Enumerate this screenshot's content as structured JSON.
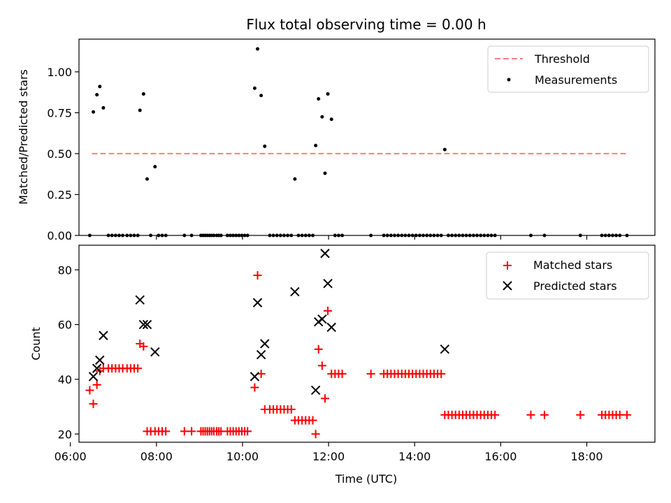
{
  "chart_data": [
    {
      "type": "scatter",
      "title": "Flux total observing time = 0.00 h",
      "ylabel": "Matched/Predicted stars",
      "xlabel": "",
      "xlim": [
        "06:12",
        "19:35"
      ],
      "ylim": [
        0,
        1.2
      ],
      "yticks": [
        0.0,
        0.25,
        0.5,
        0.75,
        1.0
      ],
      "ytick_labels": [
        "0.00",
        "0.25",
        "0.50",
        "0.75",
        "1.00"
      ],
      "legend_position": "top-right",
      "grid": false,
      "series": [
        {
          "name": "Threshold",
          "kind": "line",
          "style": "dashed",
          "color": "#ff7f7f",
          "x": [
            "06:30",
            "18:55"
          ],
          "y": [
            0.5,
            0.5
          ]
        },
        {
          "name": "Measurements",
          "kind": "scatter",
          "marker": "dot",
          "color": "#000000",
          "points": [
            [
              "06:27",
              0
            ],
            [
              "06:32",
              0.755
            ],
            [
              "06:37",
              0.86
            ],
            [
              "06:41",
              0.91
            ],
            [
              "06:46",
              0.78
            ],
            [
              "06:53",
              0
            ],
            [
              "06:58",
              0
            ],
            [
              "07:03",
              0
            ],
            [
              "07:08",
              0
            ],
            [
              "07:13",
              0
            ],
            [
              "07:19",
              0
            ],
            [
              "07:24",
              0
            ],
            [
              "07:29",
              0
            ],
            [
              "07:34",
              0
            ],
            [
              "07:37",
              0.765
            ],
            [
              "07:42",
              0.865
            ],
            [
              "07:47",
              0.345
            ],
            [
              "07:52",
              0
            ],
            [
              "07:58",
              0.42
            ],
            [
              "08:03",
              0
            ],
            [
              "08:08",
              0
            ],
            [
              "08:13",
              0
            ],
            [
              "08:39",
              0
            ],
            [
              "08:49",
              0
            ],
            [
              "09:02",
              0
            ],
            [
              "09:05",
              0
            ],
            [
              "09:08",
              0
            ],
            [
              "09:11",
              0
            ],
            [
              "09:14",
              0
            ],
            [
              "09:17",
              0
            ],
            [
              "09:20",
              0
            ],
            [
              "09:24",
              0
            ],
            [
              "09:27",
              0
            ],
            [
              "09:30",
              0
            ],
            [
              "09:39",
              0
            ],
            [
              "09:43",
              0
            ],
            [
              "09:47",
              0
            ],
            [
              "09:51",
              0
            ],
            [
              "09:55",
              0
            ],
            [
              "09:59",
              0
            ],
            [
              "10:03",
              0
            ],
            [
              "10:07",
              0
            ],
            [
              "10:17",
              0.9
            ],
            [
              "10:21",
              1.14
            ],
            [
              "10:26",
              0.855
            ],
            [
              "10:31",
              0.545
            ],
            [
              "10:38",
              0
            ],
            [
              "10:43",
              0
            ],
            [
              "10:48",
              0
            ],
            [
              "10:53",
              0
            ],
            [
              "10:58",
              0
            ],
            [
              "11:03",
              0
            ],
            [
              "11:08",
              0
            ],
            [
              "11:13",
              0.345
            ],
            [
              "11:18",
              0
            ],
            [
              "11:23",
              0
            ],
            [
              "11:28",
              0
            ],
            [
              "11:33",
              0
            ],
            [
              "11:38",
              0
            ],
            [
              "11:42",
              0.55
            ],
            [
              "11:46",
              0.835
            ],
            [
              "11:51",
              0.725
            ],
            [
              "11:55",
              0.38
            ],
            [
              "11:59",
              0.865
            ],
            [
              "12:04",
              0.71
            ],
            [
              "12:09",
              0
            ],
            [
              "12:14",
              0
            ],
            [
              "12:19",
              0
            ],
            [
              "12:59",
              0
            ],
            [
              "13:17",
              0
            ],
            [
              "13:22",
              0
            ],
            [
              "13:27",
              0
            ],
            [
              "13:32",
              0
            ],
            [
              "13:37",
              0
            ],
            [
              "13:42",
              0
            ],
            [
              "13:47",
              0
            ],
            [
              "13:52",
              0
            ],
            [
              "13:57",
              0
            ],
            [
              "14:02",
              0
            ],
            [
              "14:07",
              0
            ],
            [
              "14:12",
              0
            ],
            [
              "14:17",
              0
            ],
            [
              "14:22",
              0
            ],
            [
              "14:27",
              0
            ],
            [
              "14:32",
              0
            ],
            [
              "14:37",
              0
            ],
            [
              "14:42",
              0.525
            ],
            [
              "14:47",
              0
            ],
            [
              "14:52",
              0
            ],
            [
              "14:57",
              0
            ],
            [
              "15:02",
              0
            ],
            [
              "15:07",
              0
            ],
            [
              "15:12",
              0
            ],
            [
              "15:17",
              0
            ],
            [
              "15:22",
              0
            ],
            [
              "15:27",
              0
            ],
            [
              "15:32",
              0
            ],
            [
              "15:37",
              0
            ],
            [
              "15:42",
              0
            ],
            [
              "15:47",
              0
            ],
            [
              "15:52",
              0
            ],
            [
              "16:42",
              0
            ],
            [
              "17:01",
              0
            ],
            [
              "17:51",
              0
            ],
            [
              "18:21",
              0
            ],
            [
              "18:26",
              0
            ],
            [
              "18:31",
              0
            ],
            [
              "18:36",
              0
            ],
            [
              "18:41",
              0
            ],
            [
              "18:46",
              0
            ],
            [
              "18:56",
              0
            ]
          ]
        }
      ]
    },
    {
      "type": "scatter",
      "title": "",
      "ylabel": "Count",
      "xlabel": "Time (UTC)",
      "xlim": [
        "06:12",
        "19:35"
      ],
      "ylim": [
        17,
        89
      ],
      "xticks": [
        "06:00",
        "08:00",
        "10:00",
        "12:00",
        "14:00",
        "16:00",
        "18:00"
      ],
      "yticks": [
        20,
        40,
        60,
        80
      ],
      "ytick_labels": [
        "20",
        "40",
        "60",
        "80"
      ],
      "legend_position": "top-right",
      "grid": false,
      "series": [
        {
          "name": "Matched stars",
          "kind": "scatter",
          "marker": "plus",
          "color": "#ff0000",
          "points": [
            [
              "06:27",
              36
            ],
            [
              "06:32",
              31
            ],
            [
              "06:37",
              38
            ],
            [
              "06:41",
              43
            ],
            [
              "06:46",
              44
            ],
            [
              "06:53",
              44
            ],
            [
              "06:58",
              44
            ],
            [
              "07:03",
              44
            ],
            [
              "07:08",
              44
            ],
            [
              "07:13",
              44
            ],
            [
              "07:19",
              44
            ],
            [
              "07:24",
              44
            ],
            [
              "07:29",
              44
            ],
            [
              "07:34",
              44
            ],
            [
              "07:37",
              53
            ],
            [
              "07:42",
              52
            ],
            [
              "07:47",
              21
            ],
            [
              "07:52",
              21
            ],
            [
              "07:58",
              21
            ],
            [
              "08:03",
              21
            ],
            [
              "08:08",
              21
            ],
            [
              "08:13",
              21
            ],
            [
              "08:39",
              21
            ],
            [
              "08:49",
              21
            ],
            [
              "09:02",
              21
            ],
            [
              "09:05",
              21
            ],
            [
              "09:08",
              21
            ],
            [
              "09:11",
              21
            ],
            [
              "09:14",
              21
            ],
            [
              "09:17",
              21
            ],
            [
              "09:20",
              21
            ],
            [
              "09:24",
              21
            ],
            [
              "09:27",
              21
            ],
            [
              "09:30",
              21
            ],
            [
              "09:39",
              21
            ],
            [
              "09:43",
              21
            ],
            [
              "09:47",
              21
            ],
            [
              "09:51",
              21
            ],
            [
              "09:55",
              21
            ],
            [
              "09:59",
              21
            ],
            [
              "10:03",
              21
            ],
            [
              "10:07",
              21
            ],
            [
              "10:17",
              37
            ],
            [
              "10:21",
              78
            ],
            [
              "10:26",
              42
            ],
            [
              "10:31",
              29
            ],
            [
              "10:38",
              29
            ],
            [
              "10:43",
              29
            ],
            [
              "10:48",
              29
            ],
            [
              "10:53",
              29
            ],
            [
              "10:58",
              29
            ],
            [
              "11:03",
              29
            ],
            [
              "11:08",
              29
            ],
            [
              "11:13",
              25
            ],
            [
              "11:18",
              25
            ],
            [
              "11:23",
              25
            ],
            [
              "11:28",
              25
            ],
            [
              "11:33",
              25
            ],
            [
              "11:38",
              25
            ],
            [
              "11:42",
              20
            ],
            [
              "11:46",
              51
            ],
            [
              "11:51",
              45
            ],
            [
              "11:55",
              33
            ],
            [
              "11:59",
              65
            ],
            [
              "12:04",
              42
            ],
            [
              "12:09",
              42
            ],
            [
              "12:14",
              42
            ],
            [
              "12:19",
              42
            ],
            [
              "12:59",
              42
            ],
            [
              "13:17",
              42
            ],
            [
              "13:22",
              42
            ],
            [
              "13:27",
              42
            ],
            [
              "13:32",
              42
            ],
            [
              "13:37",
              42
            ],
            [
              "13:42",
              42
            ],
            [
              "13:47",
              42
            ],
            [
              "13:52",
              42
            ],
            [
              "13:57",
              42
            ],
            [
              "14:02",
              42
            ],
            [
              "14:07",
              42
            ],
            [
              "14:12",
              42
            ],
            [
              "14:17",
              42
            ],
            [
              "14:22",
              42
            ],
            [
              "14:27",
              42
            ],
            [
              "14:32",
              42
            ],
            [
              "14:37",
              42
            ],
            [
              "14:42",
              27
            ],
            [
              "14:47",
              27
            ],
            [
              "14:52",
              27
            ],
            [
              "14:57",
              27
            ],
            [
              "15:02",
              27
            ],
            [
              "15:07",
              27
            ],
            [
              "15:12",
              27
            ],
            [
              "15:17",
              27
            ],
            [
              "15:22",
              27
            ],
            [
              "15:27",
              27
            ],
            [
              "15:32",
              27
            ],
            [
              "15:37",
              27
            ],
            [
              "15:42",
              27
            ],
            [
              "15:47",
              27
            ],
            [
              "15:52",
              27
            ],
            [
              "16:42",
              27
            ],
            [
              "17:01",
              27
            ],
            [
              "17:51",
              27
            ],
            [
              "18:21",
              27
            ],
            [
              "18:26",
              27
            ],
            [
              "18:31",
              27
            ],
            [
              "18:36",
              27
            ],
            [
              "18:41",
              27
            ],
            [
              "18:46",
              27
            ],
            [
              "18:56",
              27
            ]
          ]
        },
        {
          "name": "Predicted stars",
          "kind": "scatter",
          "marker": "x",
          "color": "#000000",
          "points": [
            [
              "06:32",
              41
            ],
            [
              "06:37",
              44
            ],
            [
              "06:41",
              47
            ],
            [
              "06:46",
              56
            ],
            [
              "07:37",
              69
            ],
            [
              "07:42",
              60
            ],
            [
              "07:47",
              60
            ],
            [
              "07:58",
              50
            ],
            [
              "10:17",
              41
            ],
            [
              "10:21",
              68
            ],
            [
              "10:26",
              49
            ],
            [
              "10:31",
              53
            ],
            [
              "11:13",
              72
            ],
            [
              "11:42",
              36
            ],
            [
              "11:46",
              61
            ],
            [
              "11:51",
              62
            ],
            [
              "11:55",
              86
            ],
            [
              "11:59",
              75
            ],
            [
              "12:04",
              59
            ],
            [
              "14:42",
              51
            ]
          ]
        }
      ]
    }
  ]
}
